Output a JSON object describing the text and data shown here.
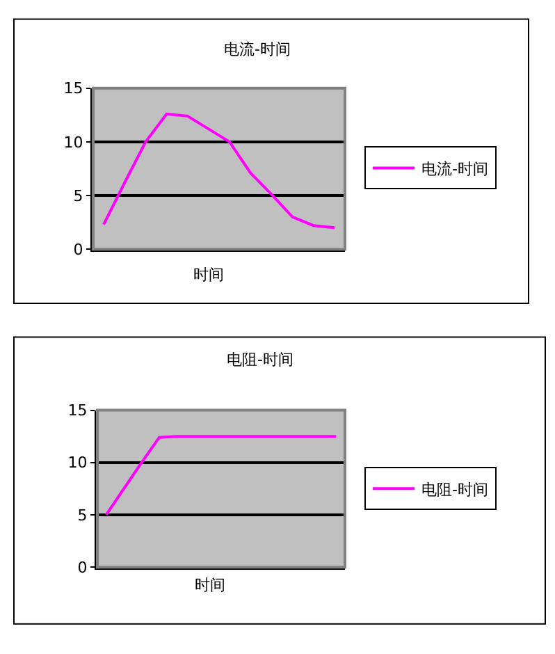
{
  "chart_data": [
    {
      "type": "line",
      "title": "电流-时间",
      "xlabel": "时间",
      "categories": [
        null,
        null,
        null,
        null,
        null,
        null,
        null,
        null,
        null,
        null,
        null,
        null
      ],
      "series": [
        {
          "name": "电流-时间",
          "color": "#ff00ff",
          "values": [
            2.3,
            6.2,
            10.0,
            12.6,
            12.4,
            11.2,
            10.0,
            7.1,
            5.1,
            3.0,
            2.2,
            2.0
          ]
        }
      ],
      "ylim": [
        0,
        15
      ],
      "yticks": [
        0,
        5,
        10,
        15
      ],
      "grid": "y",
      "legend": "right",
      "tick_labels": "y",
      "marker": "none"
    },
    {
      "type": "line",
      "title": "电阻-时间",
      "xlabel": "时间",
      "categories": [
        null,
        null,
        null,
        null,
        null,
        null,
        null,
        null,
        null,
        null,
        null,
        null,
        null,
        null
      ],
      "series": [
        {
          "name": "电阻-时间",
          "color": "#ff00ff",
          "values": [
            5.0,
            7.5,
            10.0,
            12.4,
            12.5,
            12.5,
            12.5,
            12.5,
            12.5,
            12.5,
            12.5,
            12.5,
            12.5,
            12.5
          ]
        }
      ],
      "ylim": [
        0,
        15
      ],
      "yticks": [
        0,
        5,
        10,
        15
      ],
      "grid": "y",
      "legend": "right",
      "tick_labels": "y",
      "marker": "none"
    }
  ]
}
